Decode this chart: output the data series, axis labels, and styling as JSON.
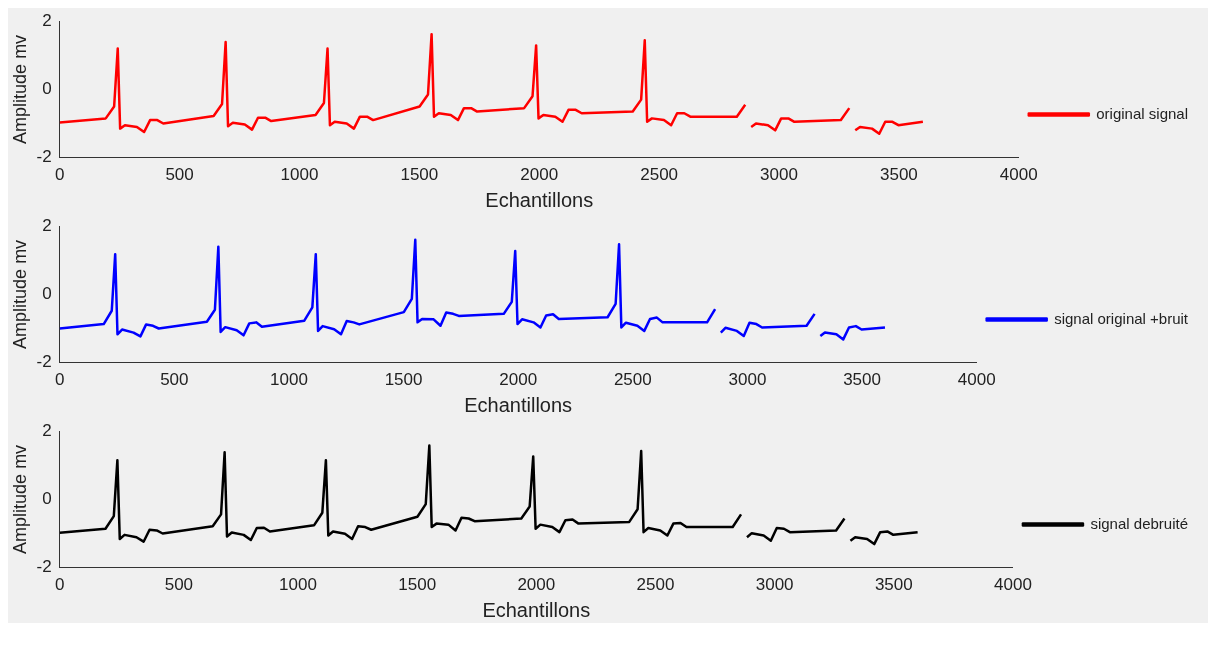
{
  "chart_data": [
    {
      "type": "line",
      "xlabel": "Echantillons",
      "ylabel": "Amplitude mv",
      "xlim": [
        0,
        4000
      ],
      "xticks": [
        0,
        500,
        1000,
        1500,
        2000,
        2500,
        3000,
        3500,
        4000
      ],
      "ylim": [
        -2,
        2
      ],
      "yticks": [
        -2,
        0,
        2
      ],
      "legend": "right",
      "grid": false,
      "x": [
        0,
        192,
        227,
        242,
        252,
        272,
        322,
        352,
        377,
        407,
        432,
        642,
        677,
        692,
        702,
        722,
        772,
        802,
        827,
        857,
        882,
        1067,
        1102,
        1117,
        1127,
        1147,
        1197,
        1227,
        1252,
        1282,
        1307,
        1501,
        1536,
        1551,
        1561,
        1581,
        1631,
        1661,
        1686,
        1716,
        1741,
        1937,
        1972,
        1987,
        1997,
        2017,
        2067,
        2097,
        2122,
        2152,
        2177,
        2390,
        2425,
        2440,
        2450,
        2470,
        2520,
        2550,
        2575,
        2605,
        2630,
        2824,
        2859,
        2874,
        2884,
        2904,
        2954,
        2984,
        3009,
        3039,
        3064,
        3258,
        3293,
        3308,
        3318,
        3338,
        3388,
        3418,
        3443,
        3473,
        3498,
        3600
      ],
      "series": [
        {
          "name": "original signal",
          "color": "#ff0000",
          "values": [
            -0.97,
            -0.85,
            -0.5,
            1.2,
            -1.15,
            -1.05,
            -1.1,
            -1.25,
            -0.9,
            -0.9,
            -1.0,
            -0.78,
            -0.43,
            1.39,
            -1.08,
            -0.98,
            -1.03,
            -1.18,
            -0.83,
            -0.83,
            -0.93,
            -0.75,
            -0.4,
            1.2,
            -1.05,
            -0.95,
            -1.0,
            -1.15,
            -0.8,
            -0.8,
            -0.9,
            -0.5,
            -0.15,
            1.62,
            -0.8,
            -0.7,
            -0.75,
            -0.9,
            -0.55,
            -0.55,
            -0.65,
            -0.55,
            -0.2,
            1.29,
            -0.85,
            -0.75,
            -0.8,
            -0.95,
            -0.6,
            -0.6,
            -0.7,
            -0.65,
            -0.3,
            1.44,
            -0.95,
            -0.85,
            -0.9,
            -1.05,
            -0.7,
            -0.7,
            -0.8,
            -0.8,
            -0.45,
            null,
            -1.1,
            -1.0,
            -1.05,
            -1.2,
            -0.85,
            -0.85,
            -0.95,
            -0.9,
            -0.55,
            null,
            -1.2,
            -1.1,
            -1.15,
            -1.3,
            -0.95,
            -0.95,
            -1.05,
            -0.95
          ]
        }
      ]
    },
    {
      "type": "line",
      "xlabel": "Echantillons",
      "ylabel": "Amplitude mv",
      "xlim": [
        0,
        4000
      ],
      "xticks": [
        0,
        500,
        1000,
        1500,
        2000,
        2500,
        3000,
        3500,
        4000
      ],
      "ylim": [
        -2,
        2
      ],
      "yticks": [
        -2,
        0,
        2
      ],
      "legend": "right",
      "grid": false,
      "x": [
        0,
        192,
        227,
        242,
        252,
        272,
        322,
        352,
        377,
        407,
        432,
        642,
        677,
        692,
        702,
        722,
        772,
        802,
        827,
        857,
        882,
        1067,
        1102,
        1117,
        1127,
        1147,
        1197,
        1227,
        1252,
        1282,
        1307,
        1501,
        1536,
        1551,
        1561,
        1581,
        1631,
        1661,
        1686,
        1716,
        1741,
        1937,
        1972,
        1987,
        1997,
        2017,
        2067,
        2097,
        2122,
        2152,
        2177,
        2390,
        2425,
        2440,
        2450,
        2470,
        2520,
        2550,
        2575,
        2605,
        2630,
        2824,
        2859,
        2874,
        2884,
        2904,
        2954,
        2984,
        3009,
        3039,
        3064,
        3258,
        3293,
        3308,
        3318,
        3338,
        3388,
        3418,
        3443,
        3473,
        3498,
        3600
      ],
      "series": [
        {
          "name": "signal original +bruit",
          "color": "#0000ff",
          "values": [
            -1.0,
            -0.87,
            -0.48,
            1.18,
            -1.17,
            -1.03,
            -1.12,
            -1.23,
            -0.88,
            -0.92,
            -1.0,
            -0.8,
            -0.45,
            1.4,
            -1.1,
            -0.96,
            -1.05,
            -1.2,
            -0.85,
            -0.82,
            -0.95,
            -0.77,
            -0.38,
            1.18,
            -1.07,
            -0.93,
            -1.02,
            -1.17,
            -0.78,
            -0.82,
            -0.88,
            -0.52,
            -0.13,
            1.6,
            -0.82,
            -0.72,
            -0.73,
            -0.92,
            -0.53,
            -0.57,
            -0.63,
            -0.57,
            -0.22,
            1.27,
            -0.87,
            -0.73,
            -0.82,
            -0.97,
            -0.62,
            -0.58,
            -0.72,
            -0.67,
            -0.28,
            1.47,
            -0.97,
            -0.83,
            -0.92,
            -1.07,
            -0.72,
            -0.68,
            -0.82,
            -0.82,
            -0.43,
            null,
            -1.12,
            -0.98,
            -1.07,
            -1.22,
            -0.83,
            -0.87,
            -0.97,
            -0.92,
            -0.57,
            null,
            -1.22,
            -1.12,
            -1.17,
            -1.32,
            -0.97,
            -0.93,
            -1.03,
            -0.97
          ]
        }
      ]
    },
    {
      "type": "line",
      "xlabel": "Echantillons",
      "ylabel": "Amplitude mv",
      "xlim": [
        0,
        4000
      ],
      "xticks": [
        0,
        500,
        1000,
        1500,
        2000,
        2500,
        3000,
        3500,
        4000
      ],
      "ylim": [
        -2,
        2
      ],
      "yticks": [
        -2,
        0,
        2
      ],
      "legend": "right",
      "grid": false,
      "x": [
        0,
        192,
        227,
        242,
        252,
        272,
        322,
        352,
        377,
        407,
        432,
        642,
        677,
        692,
        702,
        722,
        772,
        802,
        827,
        857,
        882,
        1067,
        1102,
        1117,
        1127,
        1147,
        1197,
        1227,
        1252,
        1282,
        1307,
        1501,
        1536,
        1551,
        1561,
        1581,
        1631,
        1661,
        1686,
        1716,
        1741,
        1937,
        1972,
        1987,
        1997,
        2017,
        2067,
        2097,
        2122,
        2152,
        2177,
        2390,
        2425,
        2440,
        2450,
        2470,
        2520,
        2550,
        2575,
        2605,
        2630,
        2824,
        2859,
        2874,
        2884,
        2904,
        2954,
        2984,
        3009,
        3039,
        3064,
        3258,
        3293,
        3308,
        3318,
        3338,
        3388,
        3418,
        3443,
        3473,
        3498,
        3600
      ],
      "series": [
        {
          "name": "signal debruité",
          "color": "#000000",
          "values": [
            -0.98,
            -0.86,
            -0.49,
            1.15,
            -1.16,
            -1.04,
            -1.11,
            -1.24,
            -0.89,
            -0.91,
            -1.0,
            -0.79,
            -0.44,
            1.38,
            -1.09,
            -0.97,
            -1.04,
            -1.19,
            -0.84,
            -0.83,
            -0.94,
            -0.76,
            -0.39,
            1.15,
            -1.06,
            -0.94,
            -1.01,
            -1.16,
            -0.79,
            -0.81,
            -0.89,
            -0.51,
            -0.14,
            1.58,
            -0.81,
            -0.71,
            -0.74,
            -0.91,
            -0.54,
            -0.56,
            -0.64,
            -0.56,
            -0.21,
            1.26,
            -0.86,
            -0.74,
            -0.81,
            -0.96,
            -0.61,
            -0.59,
            -0.71,
            -0.66,
            -0.29,
            1.42,
            -0.96,
            -0.84,
            -0.91,
            -1.06,
            -0.71,
            -0.69,
            -0.81,
            -0.81,
            -0.44,
            null,
            -1.11,
            -0.99,
            -1.06,
            -1.21,
            -0.84,
            -0.86,
            -0.96,
            -0.91,
            -0.56,
            null,
            -1.21,
            -1.11,
            -1.16,
            -1.31,
            -0.96,
            -0.94,
            -1.04,
            -0.96
          ]
        }
      ]
    }
  ]
}
